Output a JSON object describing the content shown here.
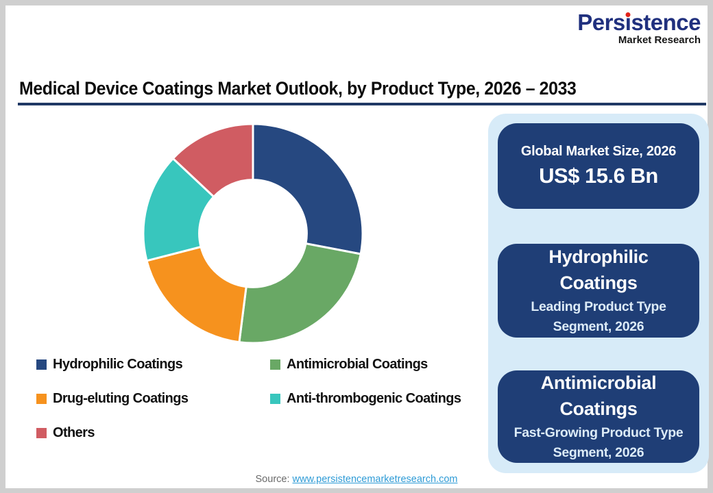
{
  "logo": {
    "brand": "Persistence",
    "brand_pre": "Pers",
    "brand_i": "ı",
    "brand_post": "stence",
    "tagline": "Market Research"
  },
  "title": {
    "text": "Medical Device Coatings Market Outlook, by Product Type, 2026 – 2033"
  },
  "chart_data": {
    "type": "pie",
    "donut": true,
    "hole_ratio": 0.49,
    "start_angle_deg": 0,
    "direction": "clockwise",
    "unit": "% share (estimated from arc angles, no labels shown)",
    "segments": [
      {
        "label": "Hydrophilic Coatings",
        "value": 28,
        "color": "#264880"
      },
      {
        "label": "Antimicrobial Coatings",
        "value": 24,
        "color": "#69a865"
      },
      {
        "label": "Drug-eluting Coatings",
        "value": 19,
        "color": "#f6921e"
      },
      {
        "label": "Anti-thrombogenic Coatings",
        "value": 16,
        "color": "#38c6bd"
      },
      {
        "label": "Others",
        "value": 13,
        "color": "#d05c62"
      }
    ],
    "legend_position": "bottom-left, two columns"
  },
  "panel": {
    "cards": [
      {
        "title": "Global Market Size, 2026",
        "value": "US$ 15.6 Bn"
      },
      {
        "title": "Hydrophilic Coatings",
        "subtitle": "Leading Product Type Segment, 2026"
      },
      {
        "title": "Antimicrobial Coatings",
        "subtitle": "Fast-Growing Product Type Segment, 2026"
      }
    ]
  },
  "footer": {
    "label": "Source:",
    "link": "www.persistencemarketresearch.com"
  },
  "colors": {
    "panel_bg": "#d7ebf8",
    "card_bg": "#1f3e76",
    "title_rule": "#1f3864",
    "logo_navy": "#20307e",
    "logo_dot_red": "#e2231a",
    "link_blue": "#2e9bd6",
    "frame_gray": "#cfcfcf"
  }
}
